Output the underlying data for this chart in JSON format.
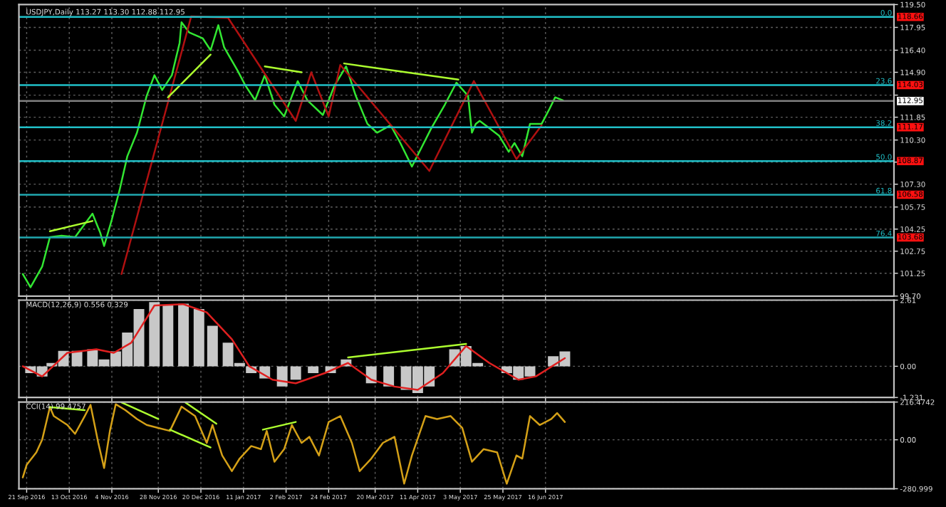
{
  "chart_data": [
    {
      "type": "line",
      "title": "USDJPY,Daily 113.27 113.30 112.88 112.95",
      "tick_labels": "y",
      "grid": true,
      "xlim": [
        "2016-09-17",
        "2017-12-13"
      ],
      "xticks": [
        {
          "value": "2016-09-21",
          "label": null
        },
        {
          "value": "2016-10-13",
          "label": null
        },
        {
          "value": "2016-11-04",
          "label": null
        },
        {
          "value": "2016-11-28",
          "label": null
        },
        {
          "value": "2016-12-20",
          "label": null
        },
        {
          "value": "2017-01-11",
          "label": null
        },
        {
          "value": "2017-02-02",
          "label": null
        },
        {
          "value": "2017-02-24",
          "label": null
        },
        {
          "value": "2017-03-20",
          "label": null
        },
        {
          "value": "2017-04-11",
          "label": null
        },
        {
          "value": "2017-05-03",
          "label": null
        },
        {
          "value": "2017-05-25",
          "label": null
        },
        {
          "value": "2017-06-16",
          "label": null
        }
      ],
      "annotations": [
        {
          "text": "0.0",
          "x": "2017-12-12",
          "y": 118.66
        },
        {
          "text": "23.6",
          "x": "2017-12-12",
          "y": 114.03
        },
        {
          "text": "38.2",
          "x": "2017-12-12",
          "y": 111.17
        },
        {
          "text": "50.0",
          "x": "2017-12-12",
          "y": 108.87
        },
        {
          "text": "61.8",
          "x": "2017-12-12",
          "y": 106.58
        },
        {
          "text": "76.4",
          "x": "2017-12-12",
          "y": 103.68
        }
      ],
      "ylim": [
        99.7,
        119.5
      ],
      "yticks": [
        {
          "value": 99.7,
          "label": "99.70"
        },
        101.25,
        102.75,
        104.25,
        105.75,
        {
          "value": 107.3,
          "label": "107.30"
        },
        {
          "value": 108.8,
          "label": null
        },
        {
          "value": 110.3,
          "label": "110.30"
        },
        111.85,
        {
          "value": 113.35,
          "label": null
        },
        {
          "value": 114.9,
          "label": "114.90"
        },
        {
          "value": 116.4,
          "label": "116.40"
        },
        117.95,
        {
          "value": 119.5,
          "label": "119.50"
        }
      ],
      "ref_lines": [
        {
          "axis": "y",
          "value": 118.66,
          "label": "118.66",
          "color": "#20c0c8"
        },
        {
          "axis": "y",
          "value": 114.03,
          "label": "114.03",
          "color": "#20c0c8"
        },
        {
          "axis": "y",
          "value": 111.17,
          "label": "111.17",
          "color": "#20c0c8"
        },
        {
          "axis": "y",
          "value": 108.87,
          "label": "108.87",
          "color": "#20c0c8"
        },
        {
          "axis": "y",
          "value": 106.58,
          "label": "106.58",
          "color": "#20a8b0"
        },
        {
          "axis": "y",
          "value": 103.68,
          "label": "103.68",
          "color": "#20a8b0"
        },
        {
          "axis": "y",
          "value": 112.95,
          "label": "112.95",
          "color": "#808080"
        }
      ],
      "series": [
        {
          "color": "#32e632",
          "x": [
            "2016-09-19",
            "2016-09-23",
            "2016-09-29",
            "2016-10-03",
            "2016-10-09",
            "2016-10-16",
            "2016-10-25",
            "2016-10-29",
            "2016-10-31",
            "2016-11-04",
            "2016-11-08",
            "2016-11-12",
            "2016-11-17",
            "2016-11-22",
            "2016-11-26",
            "2016-11-30",
            "2016-12-05",
            "2016-12-09",
            "2016-12-10",
            "2016-12-14",
            "2016-12-21",
            "2016-12-25",
            "2016-12-29",
            "2017-01-01",
            "2017-01-08",
            "2017-01-12",
            "2017-01-17",
            "2017-01-22",
            "2017-01-27",
            "2017-02-01",
            "2017-02-08",
            "2017-02-13",
            "2017-02-21",
            "2017-02-27",
            "2017-03-05",
            "2017-03-10",
            "2017-03-16",
            "2017-03-21",
            "2017-03-28",
            "2017-04-02",
            "2017-04-08",
            "2017-04-13",
            "2017-04-18",
            "2017-04-25",
            "2017-05-01",
            "2017-05-07",
            "2017-05-09",
            "2017-05-11",
            "2017-05-13",
            "2017-05-18",
            "2017-05-23",
            "2017-05-28",
            "2017-05-31",
            "2017-06-04",
            "2017-06-08",
            "2017-06-14",
            "2017-06-18",
            "2017-06-21",
            "2017-06-25"
          ],
          "values": [
            101.2,
            100.3,
            101.7,
            103.7,
            103.8,
            103.7,
            105.3,
            104.0,
            103.1,
            104.9,
            106.9,
            109.2,
            110.8,
            113.3,
            114.7,
            113.7,
            114.7,
            116.9,
            118.3,
            117.6,
            117.2,
            116.4,
            118.1,
            116.6,
            115.0,
            114.0,
            113.0,
            114.7,
            112.7,
            111.9,
            114.3,
            113.0,
            112.0,
            114.0,
            115.3,
            113.3,
            111.4,
            110.8,
            111.3,
            110.1,
            108.5,
            109.8,
            111.1,
            112.7,
            114.2,
            113.3,
            110.8,
            111.4,
            111.6,
            111.1,
            110.6,
            109.5,
            110.1,
            109.2,
            111.4,
            111.4,
            112.4,
            113.2,
            113.0
          ]
        },
        {
          "color": "#b01010",
          "x": [
            "2016-11-09",
            "2016-12-15",
            "2017-01-03",
            "2017-02-07",
            "2017-02-15",
            "2017-02-24",
            "2017-03-02",
            "2017-04-17",
            "2017-05-10",
            "2017-06-01",
            "2017-06-14"
          ],
          "values": [
            101.2,
            118.7,
            118.6,
            111.6,
            114.9,
            111.9,
            115.4,
            108.2,
            114.3,
            109.0,
            111.3
          ]
        },
        {
          "color": "#adff2f",
          "x": [
            "2016-10-03",
            "2016-10-25"
          ],
          "values": [
            104.1,
            104.8
          ]
        },
        {
          "color": "#adff2f",
          "x": [
            "2016-12-03",
            "2016-12-25"
          ],
          "values": [
            113.2,
            116.1
          ]
        },
        {
          "color": "#adff2f",
          "x": [
            "2017-01-22",
            "2017-02-10"
          ],
          "values": [
            115.3,
            114.9
          ]
        },
        {
          "color": "#adff2f",
          "x": [
            "2017-03-04",
            "2017-05-02"
          ],
          "values": [
            115.5,
            114.4
          ]
        }
      ]
    },
    {
      "type": "bar",
      "title": "MACD(12,26,9) 0.556 0.329",
      "tick_labels": "y",
      "grid": true,
      "xlim": [
        "2016-09-17",
        "2017-12-13"
      ],
      "xticks": [
        {
          "value": "2016-09-21",
          "label": null
        },
        {
          "value": "2016-10-13",
          "label": null
        },
        {
          "value": "2016-11-04",
          "label": null
        },
        {
          "value": "2016-11-28",
          "label": null
        },
        {
          "value": "2016-12-20",
          "label": null
        },
        {
          "value": "2017-01-11",
          "label": null
        },
        {
          "value": "2017-02-02",
          "label": null
        },
        {
          "value": "2017-02-24",
          "label": null
        },
        {
          "value": "2017-03-20",
          "label": null
        },
        {
          "value": "2017-04-11",
          "label": null
        },
        {
          "value": "2017-05-03",
          "label": null
        },
        {
          "value": "2017-05-25",
          "label": null
        },
        {
          "value": "2017-06-16",
          "label": null
        }
      ],
      "ylim": [
        -1.231,
        2.61
      ],
      "yticks": [
        -1.231,
        {
          "value": 0,
          "label": "0.00"
        },
        2.61
      ],
      "series": [
        {
          "color": "#c8c8c8",
          "x": [
            "2016-09-19",
            "2016-09-23",
            "2016-09-29",
            "2016-10-04",
            "2016-10-10",
            "2016-10-17",
            "2016-10-25",
            "2016-10-31",
            "2016-11-06",
            "2016-11-12",
            "2016-11-18",
            "2016-11-26",
            "2016-12-03",
            "2016-12-11",
            "2016-12-19",
            "2016-12-26",
            "2017-01-03",
            "2017-01-09",
            "2017-01-15",
            "2017-01-22",
            "2017-01-31",
            "2017-02-07",
            "2017-02-16",
            "2017-02-25",
            "2017-03-05",
            "2017-03-11",
            "2017-03-18",
            "2017-03-27",
            "2017-04-05",
            "2017-04-11",
            "2017-04-17",
            "2017-04-24",
            "2017-04-30",
            "2017-05-06",
            "2017-05-12",
            "2017-05-18",
            "2017-05-27",
            "2017-06-02",
            "2017-06-08",
            "2017-06-14",
            "2017-06-20",
            "2017-06-26"
          ],
          "values": [
            0.0,
            -0.27,
            -0.4,
            0.13,
            0.61,
            0.61,
            0.67,
            0.27,
            0.59,
            1.33,
            2.26,
            2.53,
            2.4,
            2.47,
            2.26,
            1.6,
            0.93,
            0.13,
            -0.27,
            -0.48,
            -0.8,
            -0.53,
            -0.27,
            -0.27,
            0.27,
            0.0,
            -0.67,
            -0.8,
            -0.93,
            -1.06,
            -0.8,
            0.0,
            0.67,
            0.8,
            0.13,
            0.0,
            -0.27,
            -0.53,
            -0.4,
            0.0,
            0.4,
            0.59
          ]
        },
        {
          "type": "line",
          "color": "#e02020",
          "x": [
            "2016-09-19",
            "2016-09-29",
            "2016-10-12",
            "2016-10-27",
            "2016-11-05",
            "2016-11-14",
            "2016-11-26",
            "2016-12-11",
            "2016-12-23",
            "2017-01-05",
            "2017-01-14",
            "2017-01-26",
            "2017-02-07",
            "2017-02-22",
            "2017-03-06",
            "2017-03-18",
            "2017-03-30",
            "2017-04-11",
            "2017-04-24",
            "2017-05-06",
            "2017-05-18",
            "2017-06-02",
            "2017-06-11",
            "2017-06-26"
          ],
          "values": [
            0.0,
            -0.4,
            0.53,
            0.67,
            0.53,
            0.93,
            2.4,
            2.45,
            2.13,
            1.07,
            0.0,
            -0.53,
            -0.67,
            -0.27,
            0.13,
            -0.53,
            -0.8,
            -0.93,
            -0.27,
            0.8,
            0.13,
            -0.53,
            -0.4,
            0.32
          ]
        },
        {
          "type": "line",
          "color": "#adff2f",
          "x": [
            "2017-03-06",
            "2017-05-06"
          ],
          "values": [
            0.35,
            0.88
          ]
        }
      ]
    },
    {
      "type": "line",
      "title": "CCI(14) 99.4757",
      "grid": true,
      "xlim": [
        "2016-09-17",
        "2017-12-13"
      ],
      "xticks": [
        {
          "value": "2016-09-21",
          "label": "21 Sep 2016"
        },
        {
          "value": "2016-10-13",
          "label": "13 Oct 2016"
        },
        {
          "value": "2016-11-04",
          "label": "4 Nov 2016"
        },
        {
          "value": "2016-11-28",
          "label": "28 Nov 2016"
        },
        {
          "value": "2016-12-20",
          "label": "20 Dec 2016"
        },
        {
          "value": "2017-01-11",
          "label": "11 Jan 2017"
        },
        {
          "value": "2017-02-02",
          "label": "2 Feb 2017"
        },
        {
          "value": "2017-02-24",
          "label": "24 Feb 2017"
        },
        {
          "value": "2017-03-20",
          "label": "20 Mar 2017"
        },
        {
          "value": "2017-04-11",
          "label": "11 Apr 2017"
        },
        {
          "value": "2017-05-03",
          "label": "3 May 2017"
        },
        {
          "value": "2017-05-25",
          "label": "25 May 2017"
        },
        {
          "value": "2017-06-16",
          "label": "16 Jun 2017"
        }
      ],
      "ylim": [
        -280.999,
        216.4742
      ],
      "yticks": [
        -280.999,
        {
          "value": 0,
          "label": "0.00"
        },
        216.4742
      ],
      "series": [
        {
          "color": "#d4a017",
          "x": [
            "2016-09-19",
            "2016-09-21",
            "2016-09-26",
            "2016-09-29",
            "2016-10-03",
            "2016-10-05",
            "2016-10-12",
            "2016-10-16",
            "2016-10-21",
            "2016-10-24",
            "2016-10-28",
            "2016-10-31",
            "2016-11-03",
            "2016-11-06",
            "2016-11-11",
            "2016-11-17",
            "2016-11-22",
            "2016-11-28",
            "2016-12-04",
            "2016-12-10",
            "2016-12-17",
            "2016-12-23",
            "2016-12-26",
            "2016-12-31",
            "2017-01-05",
            "2017-01-09",
            "2017-01-15",
            "2017-01-20",
            "2017-01-23",
            "2017-01-27",
            "2017-02-01",
            "2017-02-05",
            "2017-02-10",
            "2017-02-14",
            "2017-02-19",
            "2017-02-24",
            "2017-03-02",
            "2017-03-08",
            "2017-03-12",
            "2017-03-18",
            "2017-03-24",
            "2017-03-30",
            "2017-04-04",
            "2017-04-08",
            "2017-04-15",
            "2017-04-21",
            "2017-04-28",
            "2017-05-04",
            "2017-05-09",
            "2017-05-15",
            "2017-05-22",
            "2017-05-27",
            "2017-06-01",
            "2017-06-04",
            "2017-06-08",
            "2017-06-13",
            "2017-06-19",
            "2017-06-22",
            "2017-06-26"
          ],
          "values": [
            -216,
            -144,
            -72,
            0,
            187,
            136,
            85,
            34,
            136,
            200,
            -18,
            -162,
            51,
            204,
            170,
            119,
            85,
            68,
            51,
            190,
            136,
            -18,
            85,
            -90,
            -180,
            -108,
            -36,
            -54,
            51,
            -126,
            -54,
            85,
            -18,
            17,
            -90,
            102,
            136,
            -18,
            -180,
            -108,
            -18,
            17,
            -252,
            -90,
            136,
            119,
            136,
            68,
            -126,
            -54,
            -72,
            -252,
            -90,
            -108,
            136,
            85,
            119,
            153,
            102
          ]
        },
        {
          "color": "#adff2f",
          "x": [
            "2016-10-03",
            "2016-10-21"
          ],
          "values": [
            187,
            170
          ]
        },
        {
          "color": "#adff2f",
          "x": [
            "2016-11-09",
            "2016-11-28"
          ],
          "values": [
            214,
            119
          ]
        },
        {
          "color": "#adff2f",
          "x": [
            "2016-12-12",
            "2016-12-28"
          ],
          "values": [
            214,
            92
          ]
        },
        {
          "color": "#adff2f",
          "x": [
            "2016-12-04",
            "2016-12-25"
          ],
          "values": [
            58,
            -44
          ]
        },
        {
          "color": "#adff2f",
          "x": [
            "2017-01-21",
            "2017-02-07"
          ],
          "values": [
            58,
            102
          ]
        }
      ]
    }
  ]
}
